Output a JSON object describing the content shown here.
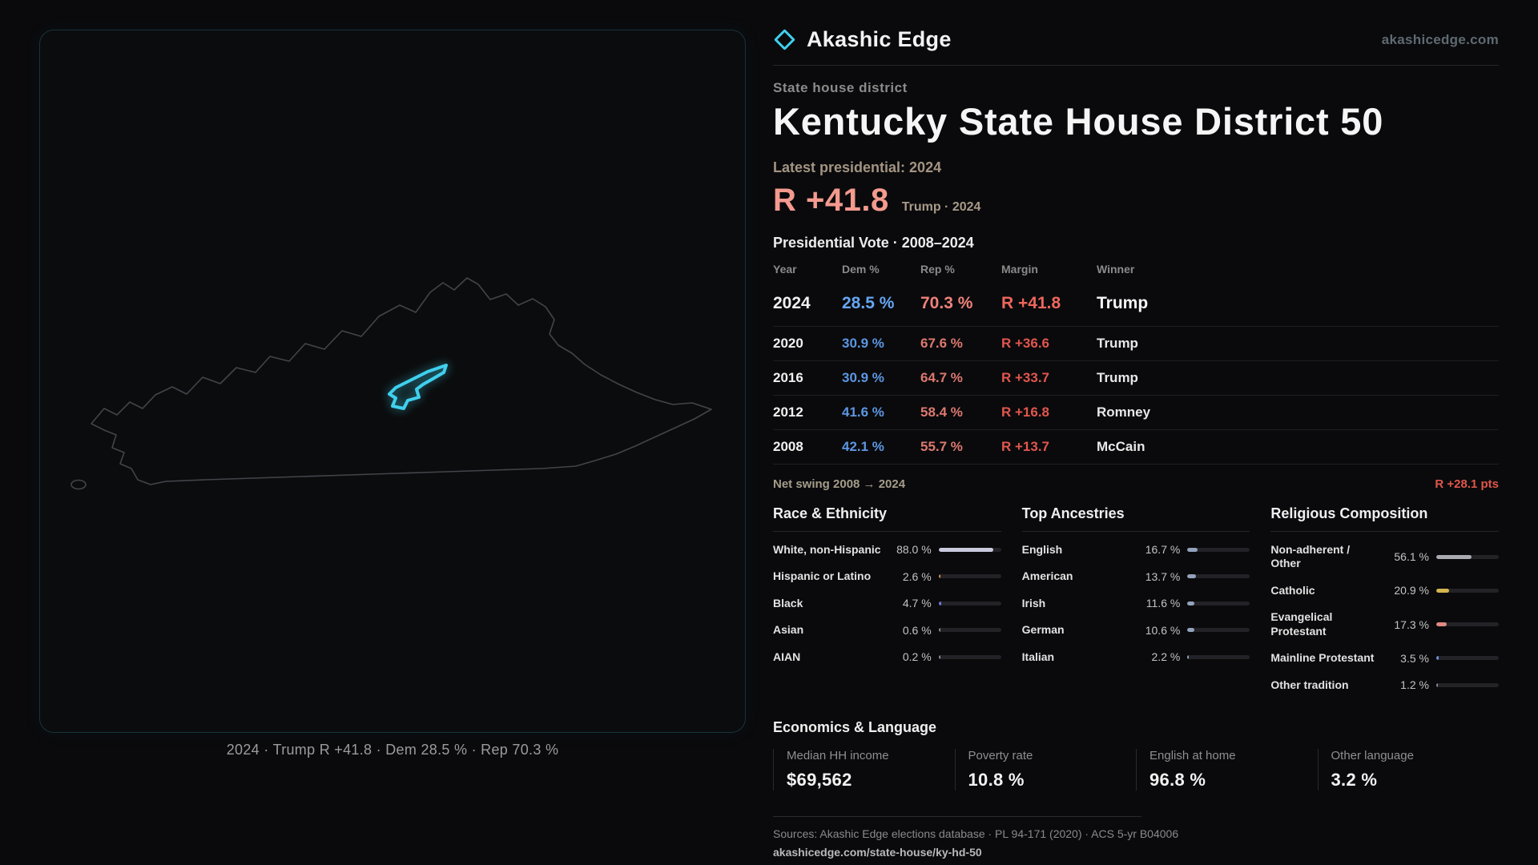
{
  "brand": {
    "name": "Akashic Edge",
    "site": "akashicedge.com"
  },
  "colors": {
    "accent_cyan": "#3fd0ee",
    "dem_blue": "#5f9be4",
    "rep_red": "#dd7970",
    "margin_red": "#e1564e",
    "headline_salmon": "#f49a8e",
    "gold": "#d4b54e",
    "warm_gray": "#a39482"
  },
  "map": {
    "caption": "2024 · Trump R +41.8 · Dem 28.5 % · Rep 70.3 %"
  },
  "header": {
    "kicker": "State house district",
    "title": "Kentucky State House District 50",
    "latest_label": "Latest presidential: 2024",
    "margin": "R +41.8",
    "margin_context": "Trump · 2024"
  },
  "vote_table": {
    "title": "Presidential Vote · 2008–2024",
    "columns": [
      "Year",
      "Dem %",
      "Rep %",
      "Margin",
      "Winner"
    ],
    "rows": [
      {
        "year": "2024",
        "dem": "28.5 %",
        "rep": "70.3 %",
        "margin": "R +41.8",
        "winner": "Trump",
        "featured": true
      },
      {
        "year": "2020",
        "dem": "30.9 %",
        "rep": "67.6 %",
        "margin": "R +36.6",
        "winner": "Trump",
        "featured": false
      },
      {
        "year": "2016",
        "dem": "30.9 %",
        "rep": "64.7 %",
        "margin": "R +33.7",
        "winner": "Trump",
        "featured": false
      },
      {
        "year": "2012",
        "dem": "41.6 %",
        "rep": "58.4 %",
        "margin": "R +16.8",
        "winner": "Romney",
        "featured": false
      },
      {
        "year": "2008",
        "dem": "42.1 %",
        "rep": "55.7 %",
        "margin": "R +13.7",
        "winner": "McCain",
        "featured": false
      }
    ],
    "net_swing_label": "Net swing 2008 → 2024",
    "net_swing_value": "R +28.1 pts"
  },
  "demographics": {
    "race": {
      "id": "race-ethnicity",
      "title": "Race & Ethnicity",
      "rows": [
        {
          "label": "White, non-Hispanic",
          "value": "88.0 %",
          "pct": 88.0,
          "color": "#c9cade"
        },
        {
          "label": "Hispanic or Latino",
          "value": "2.6 %",
          "pct": 2.6,
          "color": "#d98b4d"
        },
        {
          "label": "Black",
          "value": "4.7 %",
          "pct": 4.7,
          "color": "#6b7ad8"
        },
        {
          "label": "Asian",
          "value": "0.6 %",
          "pct": 0.6,
          "color": "#8b8b94"
        },
        {
          "label": "AIAN",
          "value": "0.2 %",
          "pct": 0.2,
          "color": "#8b8b94"
        }
      ]
    },
    "ancestries": {
      "id": "top-ancestries",
      "title": "Top Ancestries",
      "rows": [
        {
          "label": "English",
          "value": "16.7 %",
          "pct": 16.7,
          "color": "#93a3bd"
        },
        {
          "label": "American",
          "value": "13.7 %",
          "pct": 13.7,
          "color": "#93a3bd"
        },
        {
          "label": "Irish",
          "value": "11.6 %",
          "pct": 11.6,
          "color": "#93a3bd"
        },
        {
          "label": "German",
          "value": "10.6 %",
          "pct": 10.6,
          "color": "#93a3bd"
        },
        {
          "label": "Italian",
          "value": "2.2 %",
          "pct": 2.2,
          "color": "#93a3bd"
        }
      ]
    },
    "religion": {
      "id": "religious-composition",
      "title": "Religious Composition",
      "rows": [
        {
          "label": "Non-adherent / Other",
          "value": "56.1 %",
          "pct": 56.1,
          "color": "#a9aab2"
        },
        {
          "label": "Catholic",
          "value": "20.9 %",
          "pct": 20.9,
          "color": "#d4b54e"
        },
        {
          "label": "Evangelical Protestant",
          "value": "17.3 %",
          "pct": 17.3,
          "color": "#e08a82"
        },
        {
          "label": "Mainline Protestant",
          "value": "3.5 %",
          "pct": 3.5,
          "color": "#6f8fd8"
        },
        {
          "label": "Other tradition",
          "value": "1.2 %",
          "pct": 1.2,
          "color": "#8b8b94"
        }
      ]
    }
  },
  "economics": {
    "title": "Economics & Language",
    "stats": [
      {
        "label": "Median HH income",
        "value": "$69,562"
      },
      {
        "label": "Poverty rate",
        "value": "10.8 %"
      },
      {
        "label": "English at home",
        "value": "96.8 %"
      },
      {
        "label": "Other language",
        "value": "3.2 %"
      }
    ]
  },
  "footer": {
    "sources": "Sources: Akashic Edge elections database · PL 94-171 (2020) · ACS 5-yr B04006",
    "permalink": "akashicedge.com/state-house/ky-hd-50"
  }
}
